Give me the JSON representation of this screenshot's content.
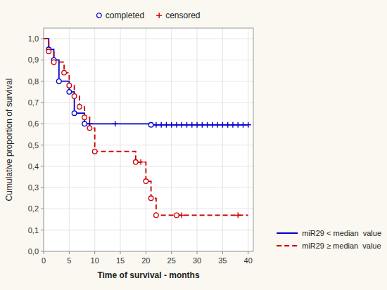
{
  "chart_data": {
    "type": "line",
    "xlabel": "Time of survival - months",
    "ylabel": "Cumulative proportion of survival",
    "grid": true,
    "xlim": [
      0,
      41
    ],
    "ylim": [
      0.0,
      1.05
    ],
    "xticks": [
      0,
      5,
      10,
      15,
      20,
      25,
      30,
      35,
      40
    ],
    "yticks": [
      {
        "value": 0.0,
        "label": "0,0"
      },
      {
        "value": 0.1,
        "label": "0,1"
      },
      {
        "value": 0.2,
        "label": "0,2"
      },
      {
        "value": 0.3,
        "label": "0,3"
      },
      {
        "value": 0.4,
        "label": "0,4"
      },
      {
        "value": 0.5,
        "label": "0,5"
      },
      {
        "value": 0.6,
        "label": "0,6"
      },
      {
        "value": 0.7,
        "label": "0,7"
      },
      {
        "value": 0.8,
        "label": "0,8"
      },
      {
        "value": 0.9,
        "label": "0,9"
      },
      {
        "value": 1.0,
        "label": "1,0"
      }
    ],
    "series": [
      {
        "name": "miR29 < median  value",
        "type": "line",
        "color": "#0000cc",
        "line_style": "solid",
        "x": [
          0,
          1,
          1,
          2,
          2,
          3,
          3,
          5,
          5,
          6,
          6,
          8,
          8,
          21,
          21,
          40
        ],
        "values": [
          1.0,
          1.0,
          0.95,
          0.95,
          0.9,
          0.9,
          0.8,
          0.8,
          0.75,
          0.75,
          0.65,
          0.65,
          0.6,
          0.6,
          0.595,
          0.595
        ]
      },
      {
        "name": "miR29 ≥ median  value",
        "type": "line",
        "color": "#cc0000",
        "line_style": "dashed",
        "x": [
          0,
          1,
          1,
          2,
          2,
          4,
          4,
          5,
          5,
          6,
          6,
          7,
          7,
          8,
          8,
          9,
          9,
          10,
          10,
          18,
          18,
          20,
          20,
          21,
          21,
          22,
          22,
          26,
          26,
          40
        ],
        "values": [
          1.0,
          1.0,
          0.94,
          0.94,
          0.89,
          0.89,
          0.84,
          0.84,
          0.78,
          0.78,
          0.73,
          0.73,
          0.68,
          0.68,
          0.63,
          0.63,
          0.58,
          0.58,
          0.47,
          0.47,
          0.42,
          0.42,
          0.33,
          0.33,
          0.25,
          0.25,
          0.17,
          0.17,
          0.17,
          0.17
        ]
      },
      {
        "name": "completed",
        "type": "scatter",
        "color": "#0000cc",
        "marker": "circle",
        "x": [
          1,
          2,
          3,
          5,
          6,
          8,
          21
        ],
        "values": [
          0.95,
          0.9,
          0.8,
          0.75,
          0.65,
          0.6,
          0.595
        ]
      },
      {
        "type": "scatter",
        "color": "#0000cc",
        "marker": "plus",
        "x": [
          9,
          14,
          22,
          23,
          24,
          25,
          26,
          27,
          28,
          29,
          30,
          31,
          32,
          33,
          34,
          35,
          36,
          37,
          38,
          39,
          40
        ],
        "values": [
          0.6,
          0.6,
          0.595,
          0.595,
          0.595,
          0.595,
          0.595,
          0.595,
          0.595,
          0.595,
          0.595,
          0.595,
          0.595,
          0.595,
          0.595,
          0.595,
          0.595,
          0.595,
          0.595,
          0.595,
          0.595
        ]
      },
      {
        "type": "scatter",
        "color": "#cc0000",
        "marker": "circle",
        "x": [
          1,
          2,
          4,
          5,
          6,
          7,
          8,
          9,
          10,
          18,
          20,
          21,
          22,
          26
        ],
        "values": [
          0.94,
          0.89,
          0.84,
          0.78,
          0.73,
          0.68,
          0.63,
          0.58,
          0.47,
          0.42,
          0.33,
          0.25,
          0.17,
          0.17
        ]
      },
      {
        "name": "censored",
        "type": "scatter",
        "color": "#cc0000",
        "marker": "plus",
        "x": [
          19,
          27,
          38
        ],
        "values": [
          0.42,
          0.17,
          0.17
        ]
      }
    ]
  }
}
